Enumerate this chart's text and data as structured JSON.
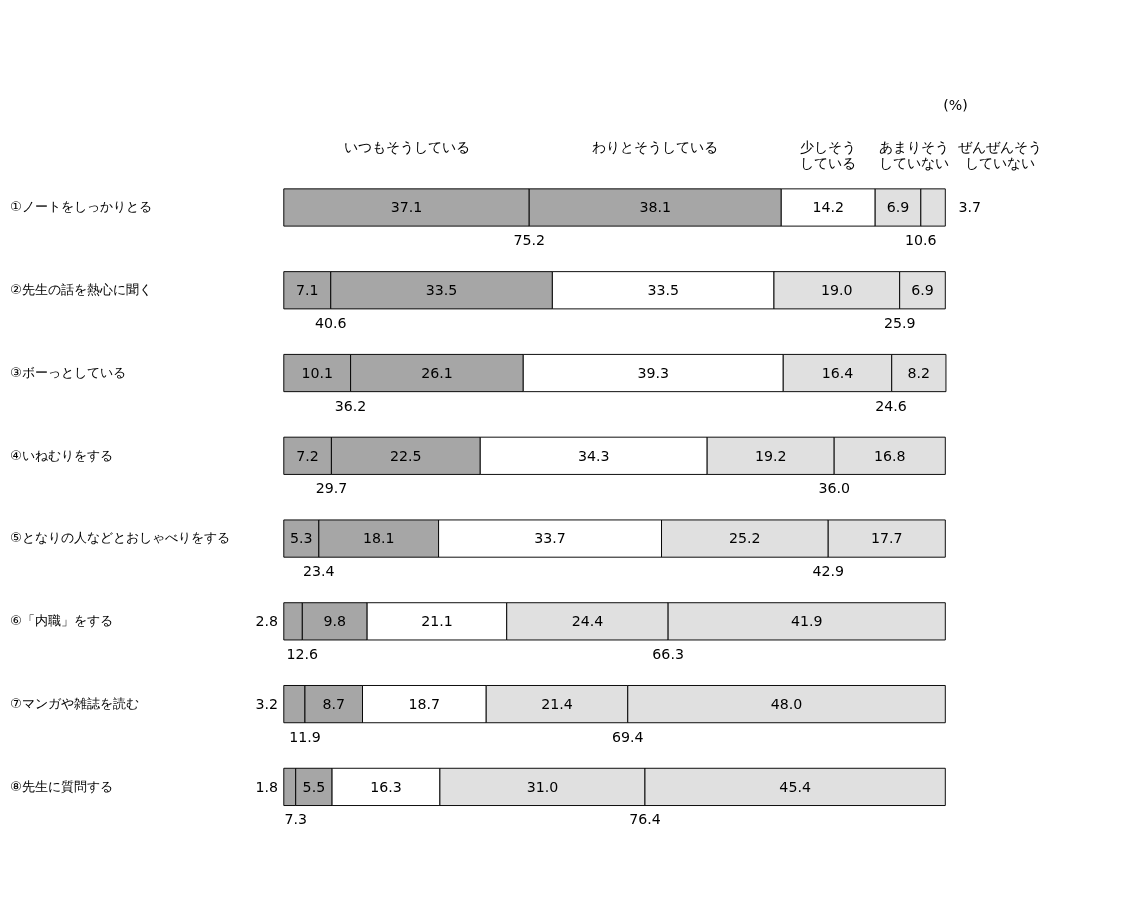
{
  "chart_data": {
    "type": "bar",
    "orientation": "horizontal",
    "stacked": true,
    "legend": "top",
    "categories": [
      "①ノートをしっかりとる",
      "②先生の話を熱心に聞く",
      "③ボーっとしている",
      "④いねむりをする",
      "⑤となりの人などとおしゃべりをする",
      "⑥「内職」をする",
      "⑦マンガや雑誌を読む",
      "⑧先生に質問する"
    ],
    "series": [
      {
        "name": "いつもそうしている",
        "color": "#a6a6a6",
        "values": [
          37.1,
          7.1,
          10.1,
          7.2,
          5.3,
          2.8,
          3.2,
          1.8
        ],
        "value_labels": [
          "37.1",
          "7.1",
          "10.1",
          "7.2",
          "5.3",
          "2.8",
          "3.2",
          "1.8"
        ]
      },
      {
        "name": "わりとそうしている",
        "color": "#a6a6a6",
        "values": [
          38.1,
          33.5,
          26.1,
          22.5,
          18.1,
          9.8,
          8.7,
          5.5
        ],
        "value_labels": [
          "38.1",
          "33.5",
          "26.1",
          "22.5",
          "18.1",
          "9.8",
          "8.7",
          "5.5"
        ]
      },
      {
        "name": "少しそうしている",
        "color": "#ffffff",
        "values": [
          14.2,
          33.5,
          39.3,
          34.3,
          33.7,
          21.1,
          18.7,
          16.3
        ],
        "value_labels": [
          "14.2",
          "33.5",
          "39.3",
          "34.3",
          "33.7",
          "21.1",
          "18.7",
          "16.3"
        ]
      },
      {
        "name": "あまりそうしていない",
        "color": "#e0e0e0",
        "values": [
          6.9,
          19.0,
          16.4,
          19.2,
          25.2,
          24.4,
          21.4,
          31.0
        ],
        "value_labels": [
          "6.9",
          "19.0",
          "16.4",
          "19.2",
          "25.2",
          "24.4",
          "21.4",
          "31.0"
        ]
      },
      {
        "name": "ぜんぜんそうしていない",
        "color": "#e0e0e0",
        "values": [
          3.7,
          6.9,
          8.2,
          16.8,
          17.7,
          41.9,
          48.0,
          45.4
        ],
        "value_labels": [
          "3.7",
          "6.9",
          "8.2",
          "16.8",
          "17.7",
          "41.9",
          "48.0",
          "45.4"
        ]
      }
    ],
    "annotations": [
      "(%)",
      {
        "text": "75.2",
        "x": 37.1,
        "y": "①ノートをしっかりとる"
      },
      {
        "text": "10.6",
        "x": 96.3,
        "y": "①ノートをしっかりとる"
      },
      {
        "text": "40.6",
        "x": 7.1,
        "y": "②先生の話を熱心に聞く"
      },
      {
        "text": "25.9",
        "x": 93.1,
        "y": "②先生の話を熱心に聞く"
      },
      {
        "text": "36.2",
        "x": 10.1,
        "y": "③ボーっとしている"
      },
      {
        "text": "24.6",
        "x": 91.8,
        "y": "③ボーっとしている"
      },
      {
        "text": "29.7",
        "x": 7.2,
        "y": "④いねむりをする"
      },
      {
        "text": "36.0",
        "x": 83.2,
        "y": "④いねむりをする"
      },
      {
        "text": "23.4",
        "x": 5.3,
        "y": "⑤となりの人などとおしゃべりをする"
      },
      {
        "text": "42.9",
        "x": 82.3,
        "y": "⑤となりの人などとおしゃべりをする"
      },
      {
        "text": "12.6",
        "x": 2.8,
        "y": "⑥「内職」をする"
      },
      {
        "text": "66.3",
        "x": 58.1,
        "y": "⑥「内職」をする"
      },
      {
        "text": "11.9",
        "x": 3.2,
        "y": "⑦マンガや雑誌を読む"
      },
      {
        "text": "69.4",
        "x": 52.0,
        "y": "⑦マンガや雑誌を読む"
      },
      {
        "text": "7.3",
        "x": 1.8,
        "y": "⑧先生に質問する"
      },
      {
        "text": "76.4",
        "x": 54.6,
        "y": "⑧先生に質問する"
      }
    ]
  }
}
